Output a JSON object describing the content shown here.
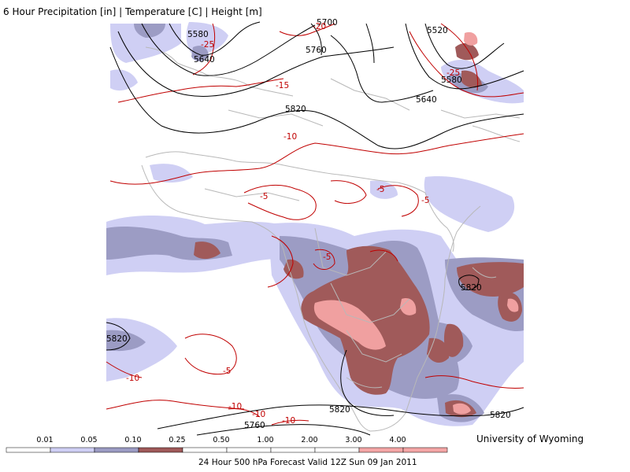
{
  "title": "6 Hour Precipitation [in] | Temperature [C] | Height [m]",
  "credit": "University of Wyoming",
  "valid_text": "24 Hour 500 hPa Forecast Valid 12Z Sun 09 Jan 2011",
  "colors": {
    "precip": [
      "#ffffff",
      "#cfcff4",
      "#9c9cc4",
      "#8c8cac",
      "#a05a5a",
      "#ef9ea0",
      "#f4a6a6"
    ],
    "height_contour": "#000000",
    "temperature_contour": "#c00000",
    "borders": "#b8b8b8"
  },
  "legend": {
    "values": [
      "0.01",
      "0.05",
      "0.10",
      "0.25",
      "0.50",
      "1.00",
      "2.00",
      "3.00",
      "4.00"
    ],
    "swatches": [
      "#ffffff",
      "#cfcff4",
      "#9c9cc4",
      "#a05a5a",
      "#a05a5a",
      "#ffffff",
      "#f0a0a0",
      "#f4a6a6",
      "#f4a6a6",
      "#f4a6a6"
    ]
  },
  "height_labels": [
    "5700",
    "5580",
    "5640",
    "5760",
    "5820",
    "5520",
    "5580",
    "5640",
    "5820",
    "5820",
    "5820",
    "5760"
  ],
  "temperature_labels": [
    "-20",
    "-25",
    "-15",
    "-10",
    "-25",
    "-5",
    "-5",
    "-5",
    "-5",
    "-5",
    "-10",
    "-10",
    "-10",
    "-10"
  ]
}
